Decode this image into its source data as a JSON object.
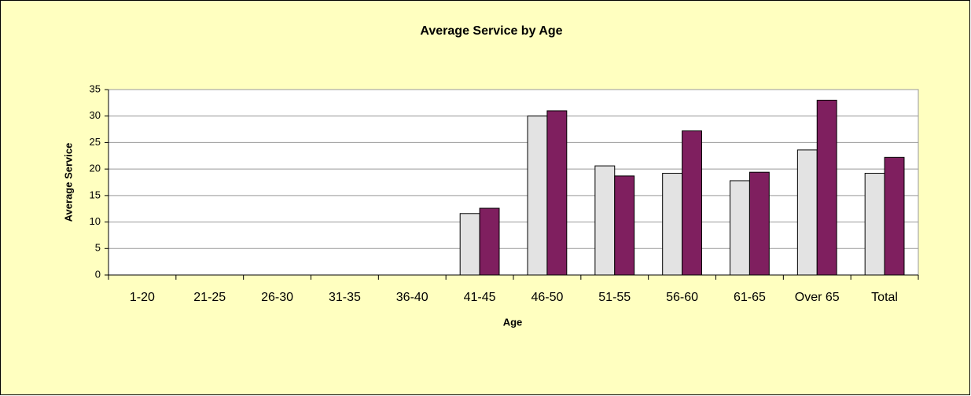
{
  "chart_data": {
    "type": "bar",
    "title": "Average Service by Age",
    "x_label": "Age",
    "y_label": "Average Service",
    "categories": [
      "1-20",
      "21-25",
      "26-30",
      "31-35",
      "36-40",
      "41-45",
      "46-50",
      "51-55",
      "56-60",
      "61-65",
      "Over 65",
      "Total"
    ],
    "series": [
      {
        "color": "#e3e3e3",
        "values": [
          null,
          null,
          null,
          null,
          null,
          11.6,
          30,
          20.6,
          19.2,
          17.8,
          23.6,
          19.2
        ]
      },
      {
        "color": "#7f1f5f",
        "values": [
          null,
          null,
          null,
          null,
          null,
          12.6,
          31,
          18.7,
          27.2,
          19.4,
          33,
          22.2
        ]
      }
    ],
    "ylim": [
      0,
      35
    ],
    "yticks": [
      0,
      5,
      10,
      15,
      20,
      25,
      30,
      35
    ],
    "grid": true
  }
}
